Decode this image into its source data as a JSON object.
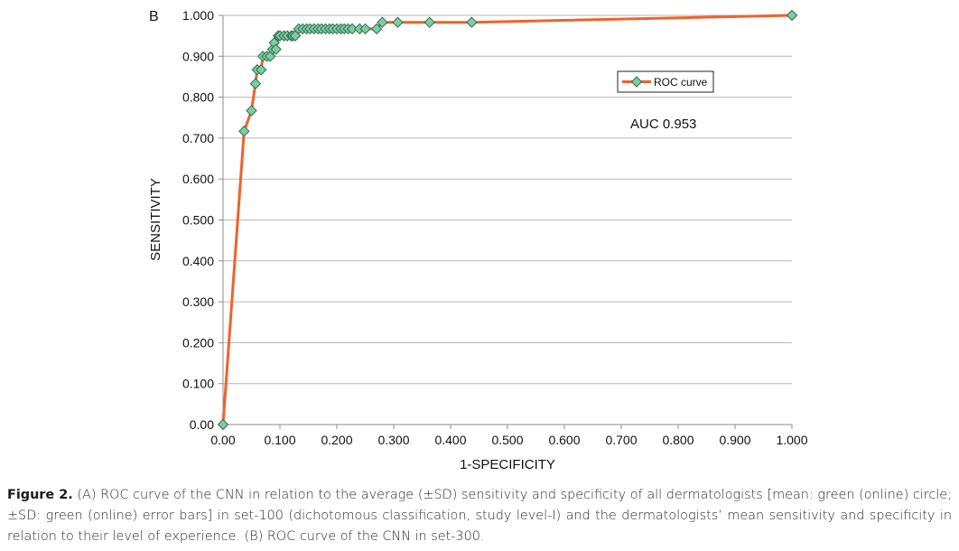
{
  "panel_label": "B",
  "caption": {
    "label": "Figure 2.",
    "text": "(A) ROC curve of the CNN in relation to the average (±SD) sensitivity and specificity of all dermatologists [mean: green (online) circle; ±SD: green (online) error bars] in set-100 (dichotomous classification, study level-I) and the dermatologists’ mean sensitivity and specificity in relation to their level of experience. (B) ROC curve of the CNN in set-300."
  },
  "chart_data": {
    "type": "line",
    "title": "",
    "xlabel": "1-SPECIFICITY",
    "ylabel": "SENSITIVITY",
    "xlim": [
      0,
      1
    ],
    "ylim": [
      0,
      1
    ],
    "x_ticks": [
      "0.00",
      "0.100",
      "0.200",
      "0.300",
      "0.400",
      "0.500",
      "0.600",
      "0.700",
      "0.800",
      "0.900",
      "1.000"
    ],
    "x_tick_values": [
      0,
      0.1,
      0.2,
      0.3,
      0.4,
      0.5,
      0.6,
      0.7,
      0.8,
      0.9,
      1.0
    ],
    "y_ticks": [
      "0.00",
      "0.100",
      "0.200",
      "0.300",
      "0.400",
      "0.500",
      "0.600",
      "0.700",
      "0.800",
      "0.900",
      "1.000"
    ],
    "y_tick_values": [
      0,
      0.1,
      0.2,
      0.3,
      0.4,
      0.5,
      0.6,
      0.7,
      0.8,
      0.9,
      1.0
    ],
    "grid": "horizontal",
    "legend": {
      "entries": [
        "ROC curve"
      ],
      "position": "top-right"
    },
    "annotations": [
      "AUC 0.953"
    ],
    "colors": {
      "line": "#f0622a",
      "marker_fill": "#7fcba4",
      "marker_stroke": "#2f6b4e",
      "grid": "#b7b7b7",
      "axis": "#8c8c8c"
    },
    "series": [
      {
        "name": "ROC curve",
        "x": [
          0,
          0.037,
          0.05,
          0.057,
          0.06,
          0.067,
          0.07,
          0.077,
          0.083,
          0.087,
          0.09,
          0.093,
          0.097,
          0.1,
          0.107,
          0.113,
          0.12,
          0.123,
          0.127,
          0.133,
          0.14,
          0.147,
          0.153,
          0.16,
          0.167,
          0.173,
          0.18,
          0.187,
          0.193,
          0.2,
          0.207,
          0.213,
          0.22,
          0.227,
          0.24,
          0.25,
          0.27,
          0.28,
          0.307,
          0.363,
          0.437,
          1.0
        ],
        "y": [
          0,
          0.717,
          0.767,
          0.833,
          0.867,
          0.867,
          0.9,
          0.9,
          0.9,
          0.917,
          0.933,
          0.917,
          0.95,
          0.95,
          0.95,
          0.95,
          0.95,
          0.95,
          0.95,
          0.967,
          0.967,
          0.967,
          0.967,
          0.967,
          0.967,
          0.967,
          0.967,
          0.967,
          0.967,
          0.967,
          0.967,
          0.967,
          0.967,
          0.967,
          0.967,
          0.967,
          0.967,
          0.983,
          0.983,
          0.983,
          0.983,
          1.0
        ]
      }
    ]
  }
}
